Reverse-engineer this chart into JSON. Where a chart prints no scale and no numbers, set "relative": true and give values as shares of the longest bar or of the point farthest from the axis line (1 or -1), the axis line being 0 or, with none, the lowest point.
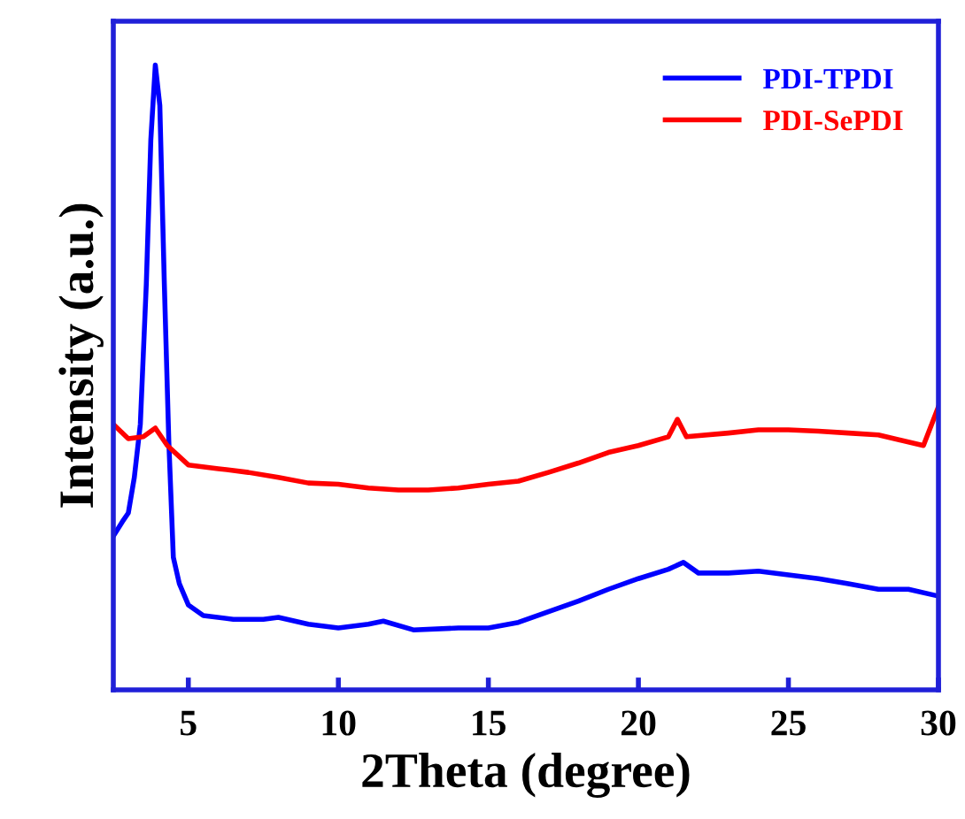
{
  "chart_data": {
    "type": "line",
    "relative": true,
    "xlabel": "2Theta (degree)",
    "ylabel": "Intensity (a.u.)",
    "xlim": [
      2.5,
      30
    ],
    "xticks": [
      5,
      10,
      15,
      20,
      25,
      30
    ],
    "legend": "top right",
    "grid": false,
    "marker": "none",
    "line_style": "solid",
    "series": [
      {
        "name": "PDI-TPDI",
        "color": "#0000ff",
        "x": [
          2.5,
          2.8,
          3.0,
          3.2,
          3.4,
          3.6,
          3.75,
          3.9,
          4.05,
          4.2,
          4.35,
          4.5,
          4.7,
          5,
          5.5,
          6.5,
          7.5,
          8,
          9,
          10,
          11,
          11.5,
          12.5,
          14,
          15,
          16,
          17,
          18,
          19,
          20,
          21,
          21.5,
          22,
          23,
          24,
          25,
          26,
          27,
          28,
          29,
          30
        ],
        "values": [
          0.246,
          0.269,
          0.283,
          0.34,
          0.425,
          0.65,
          0.88,
          1.0,
          0.935,
          0.65,
          0.397,
          0.212,
          0.17,
          0.136,
          0.119,
          0.113,
          0.113,
          0.116,
          0.105,
          0.099,
          0.105,
          0.11,
          0.096,
          0.099,
          0.099,
          0.108,
          0.125,
          0.142,
          0.161,
          0.178,
          0.193,
          0.204,
          0.187,
          0.187,
          0.19,
          0.184,
          0.178,
          0.17,
          0.161,
          0.161,
          0.15
        ]
      },
      {
        "name": "PDI-SePDI",
        "color": "#ff0000",
        "x": [
          2.5,
          3.0,
          3.5,
          3.9,
          4.3,
          5,
          6,
          7,
          8,
          9,
          10,
          11,
          12,
          13,
          14,
          15,
          16,
          17,
          18,
          19,
          20,
          21,
          21.3,
          21.6,
          23,
          24,
          25,
          26,
          27,
          28,
          29.5,
          30
        ],
        "values": [
          0.425,
          0.402,
          0.405,
          0.419,
          0.391,
          0.36,
          0.354,
          0.348,
          0.34,
          0.331,
          0.329,
          0.323,
          0.32,
          0.32,
          0.323,
          0.329,
          0.334,
          0.348,
          0.363,
          0.38,
          0.391,
          0.405,
          0.433,
          0.405,
          0.411,
          0.416,
          0.416,
          0.414,
          0.411,
          0.408,
          0.391,
          0.453
        ]
      }
    ]
  }
}
